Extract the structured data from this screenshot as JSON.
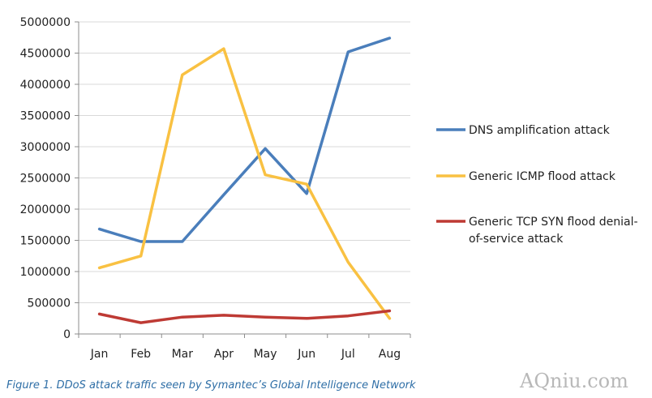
{
  "chart_data": {
    "type": "line",
    "title": "",
    "xlabel": "",
    "ylabel": "",
    "categories": [
      "Jan",
      "Feb",
      "Mar",
      "Apr",
      "May",
      "Jun",
      "Jul",
      "Aug"
    ],
    "ylim": [
      0,
      5000000
    ],
    "yticks": [
      0,
      500000,
      1000000,
      1500000,
      2000000,
      2500000,
      3000000,
      3500000,
      4000000,
      4500000,
      5000000
    ],
    "ytick_labels": [
      "0",
      "500000",
      "1000000",
      "1500000",
      "2000000",
      "2500000",
      "3000000",
      "3500000",
      "4000000",
      "4500000",
      "5000000"
    ],
    "grid": "horizontal",
    "legend_position": "right",
    "series": [
      {
        "name": "DNS amplification attack",
        "legend_lines": [
          "DNS amplification attack"
        ],
        "color": "#4a7ebb",
        "values": [
          1680000,
          1480000,
          1480000,
          2230000,
          2970000,
          2250000,
          4520000,
          4740000
        ]
      },
      {
        "name": "Generic ICMP flood attack",
        "legend_lines": [
          "Generic ICMP flood attack"
        ],
        "color": "#f9c142",
        "values": [
          1060000,
          1250000,
          4150000,
          4570000,
          2550000,
          2400000,
          1150000,
          250000
        ]
      },
      {
        "name": "Generic TCP SYN flood denial-of-service attack",
        "legend_lines": [
          "Generic TCP SYN flood denial-",
          "of-service attack"
        ],
        "color": "#be3a34",
        "values": [
          320000,
          180000,
          270000,
          300000,
          270000,
          250000,
          290000,
          370000
        ]
      }
    ]
  },
  "caption": "Figure 1. DDoS attack traffic seen by Symantec’s Global Intelligence Network",
  "watermark": "AQniu.com"
}
